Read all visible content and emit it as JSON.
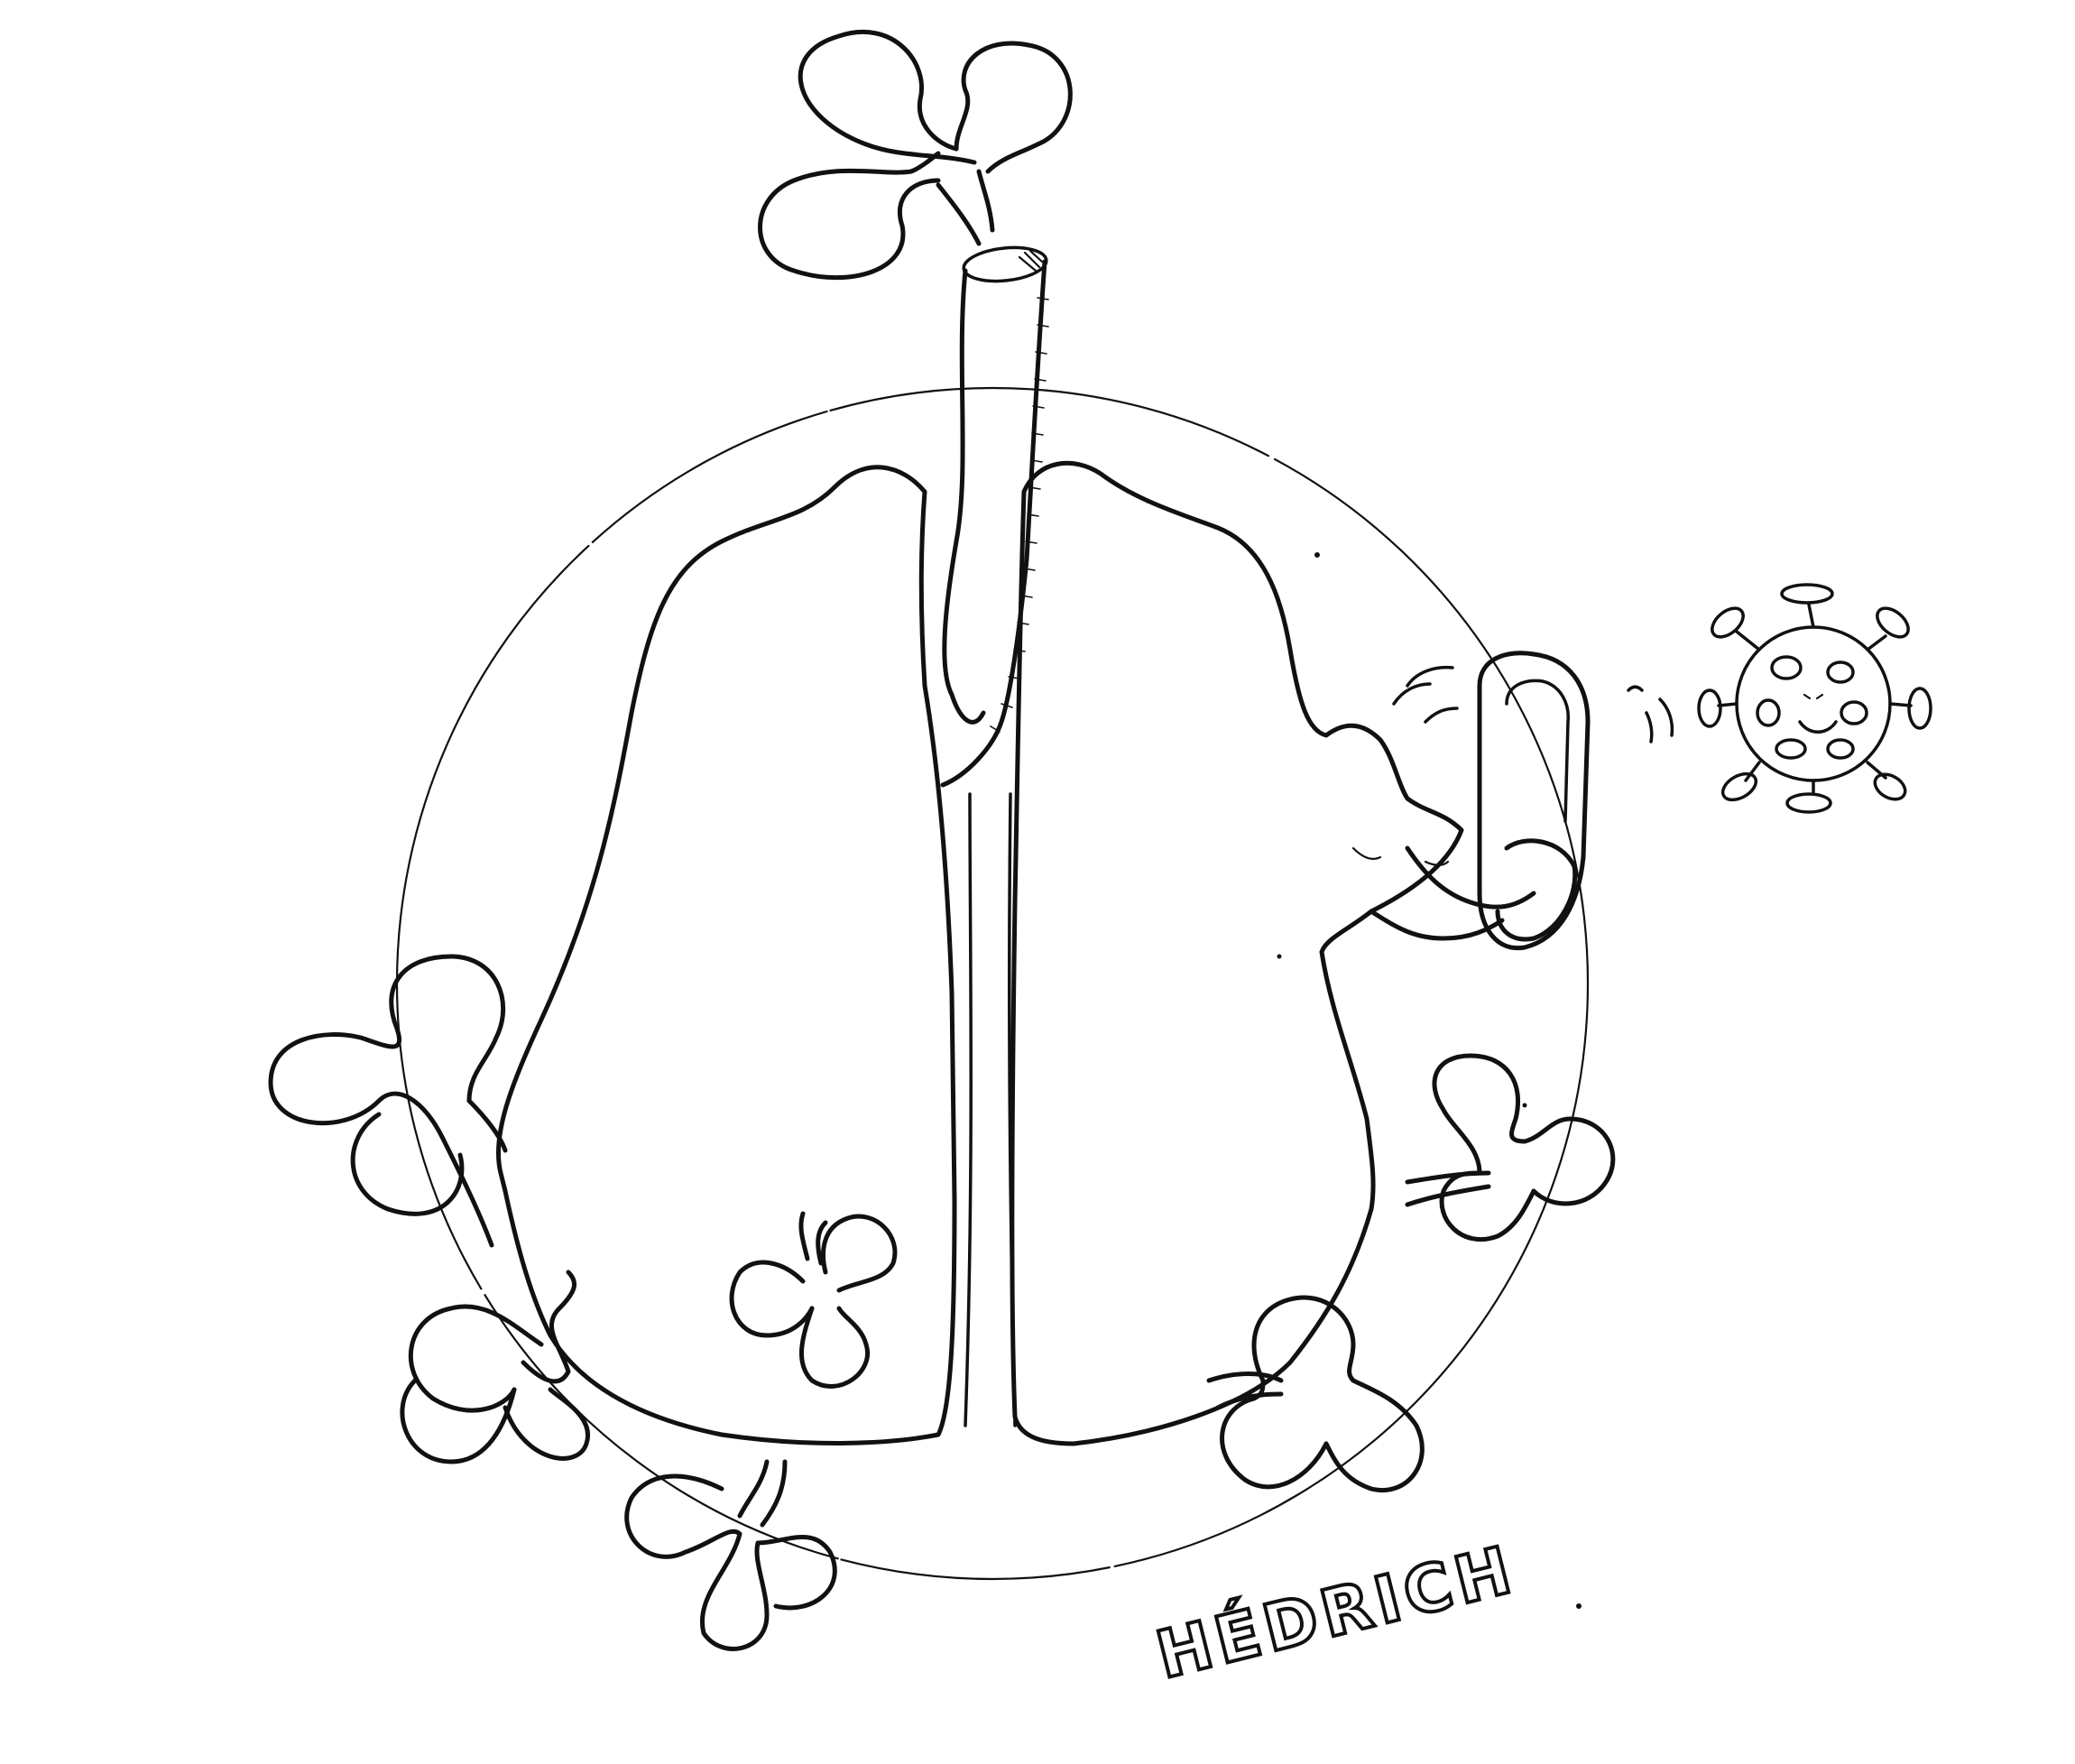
{
  "artwork": {
    "signature": "HÉDRICH",
    "ink_color": "#111111",
    "background_color": "#ffffff"
  }
}
